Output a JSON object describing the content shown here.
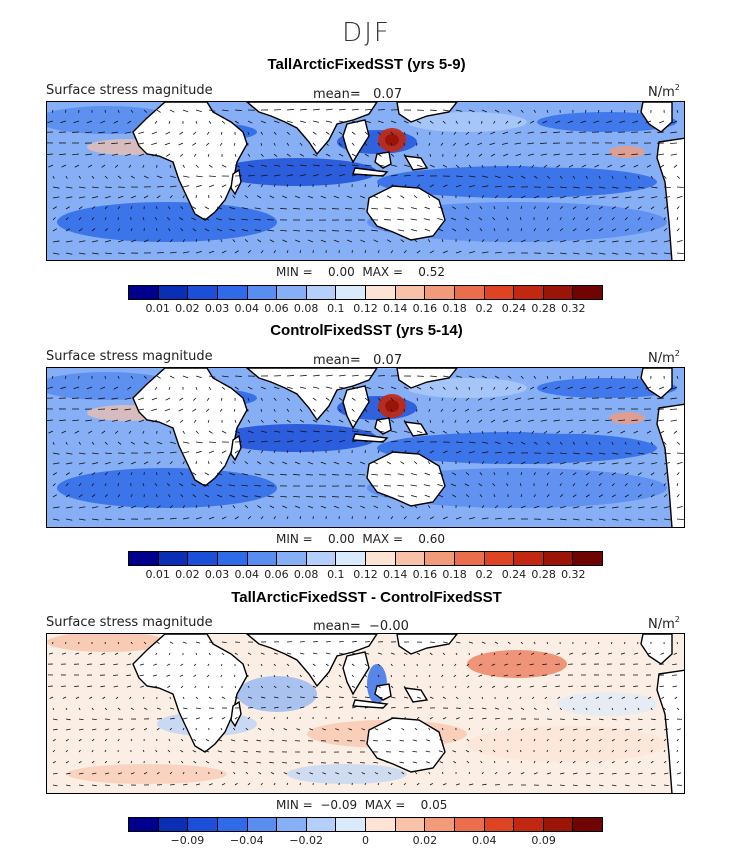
{
  "figure": {
    "title": "DJF"
  },
  "colors": {
    "land": "#ffffff",
    "coast": "#000000",
    "abs_scale": [
      "#00008c",
      "#0a2fb4",
      "#1c4fd8",
      "#2f6ae8",
      "#5a8df0",
      "#86aff5",
      "#b3cffa",
      "#daeafd",
      "#fde3d4",
      "#f8c2a8",
      "#f29b7a",
      "#ea6e4c",
      "#de4424",
      "#c22810",
      "#9b1408",
      "#6e0503"
    ],
    "diff_scale": [
      "#00008c",
      "#0a2fb4",
      "#1c4fd8",
      "#2f6ae8",
      "#5a8df0",
      "#86aff5",
      "#b3cffa",
      "#daeafd",
      "#fde3d4",
      "#f8c2a8",
      "#f29b7a",
      "#ea6e4c",
      "#de4424",
      "#c22810",
      "#9b1408",
      "#6e0503"
    ]
  },
  "panels": [
    {
      "title": "TallArcticFixedSST (yrs 5-9)",
      "field_label": "Surface stress magnitude",
      "mean_text": "mean=   0.07",
      "units": "N/m",
      "units_sup": "2",
      "minmax_text": "MIN =    0.00  MAX =    0.52",
      "colorbar_ticks": [
        "0.01",
        "0.02",
        "0.03",
        "0.04",
        "0.06",
        "0.08",
        "0.1",
        "0.12",
        "0.14",
        "0.16",
        "0.18",
        "0.2",
        "0.24",
        "0.28",
        "0.32"
      ],
      "scale": "abs"
    },
    {
      "title": "ControlFixedSST (yrs 5-14)",
      "field_label": "Surface stress magnitude",
      "mean_text": "mean=   0.07",
      "units": "N/m",
      "units_sup": "2",
      "minmax_text": "MIN =    0.00  MAX =    0.60",
      "colorbar_ticks": [
        "0.01",
        "0.02",
        "0.03",
        "0.04",
        "0.06",
        "0.08",
        "0.1",
        "0.12",
        "0.14",
        "0.16",
        "0.18",
        "0.2",
        "0.24",
        "0.28",
        "0.32"
      ],
      "scale": "abs"
    },
    {
      "title": "TallArcticFixedSST - ControlFixedSST",
      "field_label": "Surface stress magnitude",
      "mean_text": "mean=  −0.00",
      "units": "N/m",
      "units_sup": "2",
      "minmax_text": "MIN =  −0.09  MAX =    0.05",
      "colorbar_ticks": [
        "−0.09",
        "−0.04",
        "−0.02",
        "0",
        "0.02",
        "0.04",
        "0.09"
      ],
      "scale": "diff"
    }
  ]
}
